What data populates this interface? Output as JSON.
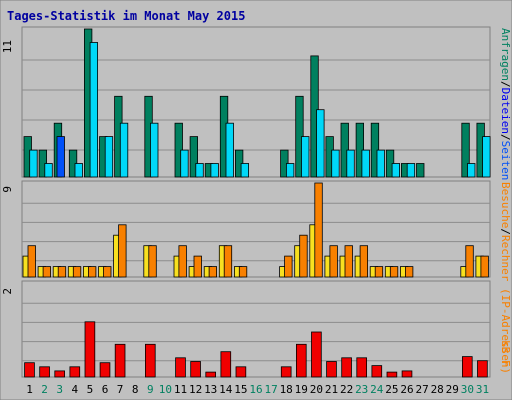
{
  "title": "Tages-Statistik im Monat May 2015",
  "chart_data": [
    {
      "type": "bar",
      "panel": "top",
      "ymax_label": "11",
      "ylim": [
        0,
        11
      ],
      "categories": [
        "1",
        "2",
        "3",
        "4",
        "5",
        "6",
        "7",
        "8",
        "9",
        "10",
        "11",
        "12",
        "13",
        "14",
        "15",
        "16",
        "17",
        "18",
        "19",
        "20",
        "21",
        "22",
        "23",
        "24",
        "25",
        "26",
        "27",
        "28",
        "29",
        "30",
        "31"
      ],
      "right_label": {
        "parts": [
          "Anfragen",
          "/",
          "Dateien",
          "/",
          "Seiten"
        ]
      },
      "series": [
        {
          "name": "Anfragen",
          "color": "#00805f",
          "values": [
            3,
            2,
            4,
            2,
            11,
            3,
            6,
            0,
            6,
            0,
            4,
            3,
            1,
            6,
            2,
            0,
            0,
            2,
            6,
            9,
            3,
            4,
            4,
            4,
            2,
            1,
            1,
            0,
            0,
            4,
            4
          ]
        },
        {
          "name": "Dateien",
          "color": "#00d8f8",
          "values": [
            2,
            1,
            0,
            1,
            10,
            3,
            4,
            0,
            4,
            0,
            2,
            1,
            1,
            4,
            1,
            0,
            0,
            1,
            3,
            5,
            2,
            2,
            2,
            2,
            1,
            1,
            0,
            0,
            0,
            1,
            3
          ]
        },
        {
          "name": "Seiten",
          "color": "#0050f8",
          "values": [
            0,
            0,
            3,
            0,
            0,
            0,
            0,
            0,
            0,
            0,
            0,
            0,
            0,
            0,
            0,
            0,
            0,
            0,
            0,
            0,
            0,
            0,
            0,
            0,
            0,
            0,
            0,
            0,
            0,
            0,
            0
          ]
        }
      ]
    },
    {
      "type": "bar",
      "panel": "middle",
      "ymax_label": "9",
      "ylim": [
        0,
        9
      ],
      "right_label": {
        "parts": [
          "Besuche",
          "/",
          "Rechner (IP-Adressen)"
        ]
      },
      "series": [
        {
          "name": "Besuche",
          "color": "#f8e020",
          "values": [
            2,
            1,
            1,
            1,
            1,
            1,
            4,
            0,
            3,
            0,
            2,
            1,
            1,
            3,
            1,
            0,
            0,
            1,
            3,
            5,
            2,
            2,
            2,
            1,
            1,
            1,
            0,
            0,
            0,
            1,
            2
          ]
        },
        {
          "name": "Rechner (IP-Adressen)",
          "color": "#f88000",
          "values": [
            3,
            1,
            1,
            1,
            1,
            1,
            5,
            0,
            3,
            0,
            3,
            2,
            1,
            3,
            1,
            0,
            0,
            2,
            4,
            9,
            3,
            3,
            3,
            1,
            1,
            1,
            0,
            0,
            0,
            3,
            2
          ]
        }
      ]
    },
    {
      "type": "bar",
      "panel": "bottom",
      "ymax_label": "2",
      "ylim": [
        0,
        2.3
      ],
      "right_label": {
        "parts": [
          "kB F"
        ]
      },
      "series": [
        {
          "name": "kB F",
          "color": "#f00000",
          "values": [
            0.35,
            0.25,
            0.15,
            0.25,
            1.35,
            0.35,
            0.8,
            0,
            0.8,
            0,
            0.47,
            0.38,
            0.12,
            0.62,
            0.25,
            0,
            0,
            0.25,
            0.8,
            1.1,
            0.38,
            0.47,
            0.47,
            0.28,
            0.12,
            0.15,
            0,
            0,
            0,
            0.5,
            0.4
          ]
        }
      ]
    }
  ],
  "colors": {
    "background": "#c0c0c0",
    "gridline": "#8c8c8c",
    "title": "#0000a0",
    "day_weekday": "#000000",
    "day_weekend": "#008060",
    "ip_label": "#f88000"
  },
  "weekend_days": [
    2,
    3,
    9,
    10,
    16,
    17,
    23,
    24,
    30,
    31
  ]
}
